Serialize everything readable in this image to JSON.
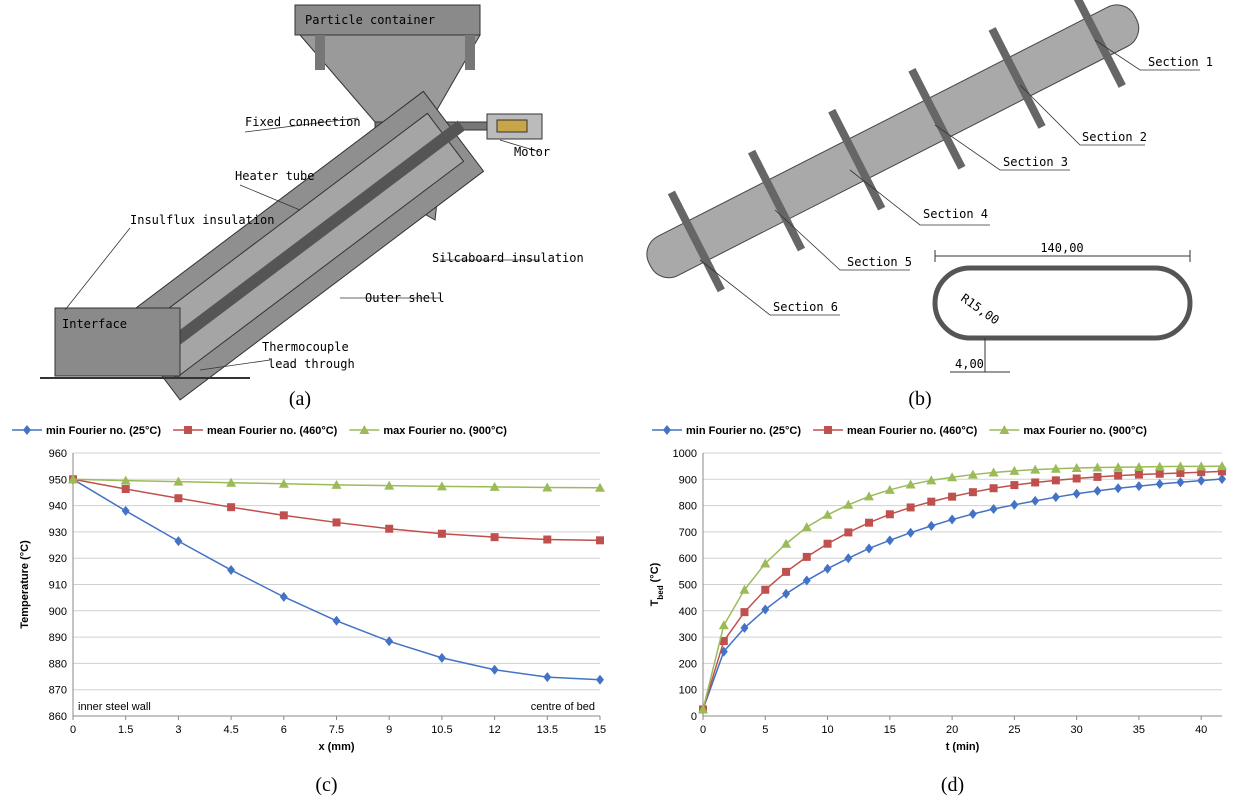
{
  "diagram_a": {
    "labels": [
      "Particle container",
      "Fixed connection",
      "Motor",
      "Heater tube",
      "Insulflux insulation",
      "Silcaboard insulation",
      "Outer shell",
      "Interface",
      "Thermocouple",
      "lead through"
    ],
    "caption": "(a)"
  },
  "diagram_b": {
    "labels": [
      "Section 1",
      "Section 2",
      "Section 3",
      "Section 4",
      "Section 5",
      "Section 6"
    ],
    "dimensions": [
      "140,00",
      "R15,00",
      "4,00"
    ],
    "caption": "(b)"
  },
  "chart_data": [
    {
      "type": "line",
      "caption": "(c)",
      "xlabel": "x (mm)",
      "ylabel": [
        "Temperature (°C)"
      ],
      "x": [
        0,
        1.5,
        3,
        4.5,
        6,
        7.5,
        9,
        10.5,
        12,
        13.5,
        15
      ],
      "xlim": [
        0,
        15
      ],
      "xticks": [
        0,
        1.5,
        3,
        4.5,
        6,
        7.5,
        9,
        10.5,
        12,
        13.5,
        15
      ],
      "ylim": [
        860,
        960
      ],
      "yticks": [
        860,
        870,
        880,
        890,
        900,
        910,
        920,
        930,
        940,
        950,
        960
      ],
      "grid": true,
      "legend": "top",
      "annotations": [
        "inner steel wall",
        "centre of bed"
      ],
      "series": [
        {
          "name": "min Fourier no. (25°C)",
          "color": "#4472c4",
          "marker": "diamond",
          "values": [
            950,
            938,
            926.5,
            915.5,
            905.3,
            896.2,
            888.4,
            882.1,
            877.6,
            874.8,
            873.8
          ]
        },
        {
          "name": "mean Fourier no. (460°C)",
          "color": "#c0504d",
          "marker": "square",
          "values": [
            950,
            946.3,
            942.8,
            939.4,
            936.3,
            933.6,
            931.2,
            929.3,
            928,
            927.1,
            926.8
          ]
        },
        {
          "name": "max Fourier no. (900°C)",
          "color": "#9bbb59",
          "marker": "triangle",
          "values": [
            950,
            949.5,
            949.1,
            948.7,
            948.3,
            947.9,
            947.6,
            947.3,
            947.1,
            946.9,
            946.8
          ]
        }
      ]
    },
    {
      "type": "line",
      "caption": "(d)",
      "xlabel": "t (min)",
      "ylabel": [
        "T",
        "bed",
        "(°C)"
      ],
      "x": [
        0,
        1.67,
        3.33,
        5,
        6.67,
        8.33,
        10,
        11.67,
        13.33,
        15,
        16.67,
        18.33,
        20,
        21.67,
        23.33,
        25,
        26.67,
        28.33,
        30,
        31.67,
        33.33,
        35,
        36.67,
        38.33,
        40,
        41.67
      ],
      "xlim": [
        0,
        41.67
      ],
      "xticks": [
        0,
        5,
        10,
        15,
        20,
        25,
        30,
        35,
        40
      ],
      "ylim": [
        0,
        1000
      ],
      "yticks": [
        0,
        100,
        200,
        300,
        400,
        500,
        600,
        700,
        800,
        900,
        1000
      ],
      "grid": true,
      "legend": "top",
      "series": [
        {
          "name": "min Fourier no. (25°C)",
          "color": "#4472c4",
          "marker": "diamond",
          "values": [
            25,
            245,
            335,
            405,
            465,
            515,
            560,
            600,
            637,
            668,
            697,
            723,
            747,
            768,
            787,
            803,
            818,
            832,
            845,
            856,
            866,
            874,
            882,
            889,
            895,
            901
          ]
        },
        {
          "name": "mean Fourier no. (460°C)",
          "color": "#c0504d",
          "marker": "square",
          "values": [
            25,
            285,
            395,
            480,
            548,
            605,
            655,
            698,
            735,
            767,
            793,
            815,
            834,
            851,
            866,
            878,
            888,
            896,
            903,
            909,
            914,
            918,
            921,
            924,
            927,
            930
          ]
        },
        {
          "name": "max Fourier no. (900°C)",
          "color": "#9bbb59",
          "marker": "triangle",
          "values": [
            25,
            345,
            480,
            580,
            655,
            718,
            765,
            803,
            835,
            860,
            880,
            896,
            908,
            918,
            926,
            932,
            937,
            940,
            943,
            945,
            946,
            947,
            948,
            949,
            949,
            950
          ]
        }
      ]
    }
  ]
}
